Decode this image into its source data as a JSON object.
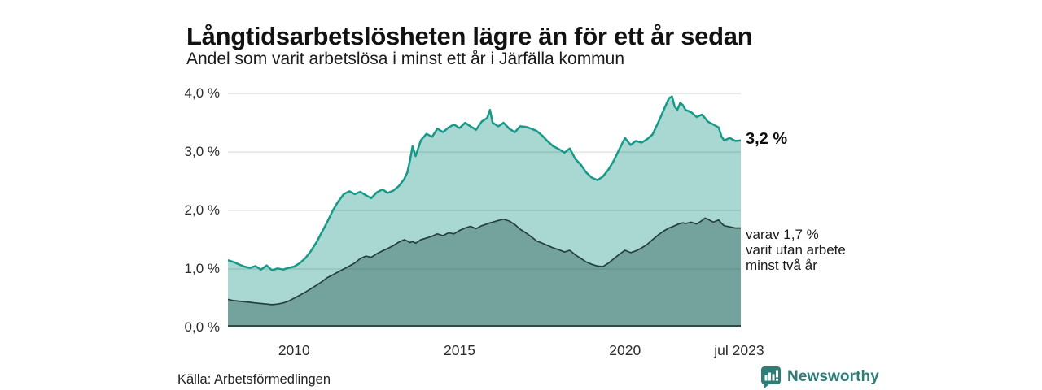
{
  "header": {
    "title": "Långtidsarbetslösheten lägre än för ett år sedan",
    "subtitle": "Andel som varit arbetslösa i minst ett år i Järfälla kommun"
  },
  "chart_data": {
    "type": "area",
    "title": "Långtidsarbetslösheten lägre än för ett år sedan",
    "subtitle": "Andel som varit arbetslösa i minst ett år i Järfälla kommun",
    "unit": "%",
    "x_range": [
      2008.0,
      2023.5
    ],
    "y_range": [
      0,
      4.14
    ],
    "grid": true,
    "x_ticks": [
      {
        "t": 2010,
        "label": "2010"
      },
      {
        "t": 2015,
        "label": "2015"
      },
      {
        "t": 2020,
        "label": "2020"
      },
      {
        "t": 2023.45,
        "label": "jul 2023"
      }
    ],
    "y_ticks": [
      {
        "v": 4,
        "label": "4,0 %"
      },
      {
        "v": 3,
        "label": "3,0 %"
      },
      {
        "v": 2,
        "label": "2,0 %"
      },
      {
        "v": 1,
        "label": "1,0 %"
      },
      {
        "v": 0,
        "label": "0,0 %"
      }
    ],
    "series": [
      {
        "name": "Andel som varit arbetslösa minst ett år",
        "line": "#17998a",
        "fill": "#a9d7d1",
        "last_value": 3.2
      },
      {
        "name": "varav utan arbete minst två år",
        "line": "#24403d",
        "fill": "#74a29d",
        "last_value": 1.7
      }
    ],
    "points": [
      [
        2008.0,
        1.15,
        0.48
      ],
      [
        2008.17,
        1.12,
        0.46
      ],
      [
        2008.33,
        1.08,
        0.45
      ],
      [
        2008.5,
        1.04,
        0.44
      ],
      [
        2008.67,
        1.02,
        0.43
      ],
      [
        2008.83,
        1.05,
        0.42
      ],
      [
        2009.0,
        0.99,
        0.41
      ],
      [
        2009.17,
        1.06,
        0.4
      ],
      [
        2009.33,
        0.98,
        0.39
      ],
      [
        2009.5,
        1.01,
        0.4
      ],
      [
        2009.67,
        0.99,
        0.42
      ],
      [
        2009.83,
        1.02,
        0.45
      ],
      [
        2010.0,
        1.04,
        0.5
      ],
      [
        2010.17,
        1.1,
        0.55
      ],
      [
        2010.33,
        1.18,
        0.6
      ],
      [
        2010.5,
        1.3,
        0.66
      ],
      [
        2010.67,
        1.45,
        0.72
      ],
      [
        2010.83,
        1.62,
        0.78
      ],
      [
        2011.0,
        1.8,
        0.85
      ],
      [
        2011.17,
        2.0,
        0.9
      ],
      [
        2011.33,
        2.15,
        0.95
      ],
      [
        2011.5,
        2.28,
        1.0
      ],
      [
        2011.67,
        2.33,
        1.05
      ],
      [
        2011.83,
        2.28,
        1.1
      ],
      [
        2012.0,
        2.32,
        1.18
      ],
      [
        2012.17,
        2.26,
        1.22
      ],
      [
        2012.33,
        2.21,
        1.2
      ],
      [
        2012.5,
        2.31,
        1.26
      ],
      [
        2012.67,
        2.36,
        1.31
      ],
      [
        2012.83,
        2.3,
        1.35
      ],
      [
        2013.0,
        2.34,
        1.4
      ],
      [
        2013.17,
        2.42,
        1.46
      ],
      [
        2013.33,
        2.54,
        1.5
      ],
      [
        2013.42,
        2.65,
        1.48
      ],
      [
        2013.5,
        2.85,
        1.45
      ],
      [
        2013.58,
        3.1,
        1.47
      ],
      [
        2013.67,
        2.93,
        1.44
      ],
      [
        2013.83,
        3.2,
        1.5
      ],
      [
        2014.0,
        3.31,
        1.53
      ],
      [
        2014.17,
        3.26,
        1.56
      ],
      [
        2014.33,
        3.4,
        1.6
      ],
      [
        2014.5,
        3.34,
        1.57
      ],
      [
        2014.67,
        3.42,
        1.62
      ],
      [
        2014.83,
        3.47,
        1.6
      ],
      [
        2015.0,
        3.41,
        1.66
      ],
      [
        2015.17,
        3.5,
        1.7
      ],
      [
        2015.33,
        3.44,
        1.73
      ],
      [
        2015.5,
        3.38,
        1.69
      ],
      [
        2015.67,
        3.52,
        1.74
      ],
      [
        2015.83,
        3.58,
        1.77
      ],
      [
        2015.92,
        3.72,
        1.79
      ],
      [
        2016.0,
        3.5,
        1.8
      ],
      [
        2016.17,
        3.44,
        1.83
      ],
      [
        2016.33,
        3.5,
        1.85
      ],
      [
        2016.5,
        3.4,
        1.82
      ],
      [
        2016.67,
        3.34,
        1.76
      ],
      [
        2016.83,
        3.44,
        1.68
      ],
      [
        2017.0,
        3.43,
        1.62
      ],
      [
        2017.17,
        3.4,
        1.55
      ],
      [
        2017.33,
        3.36,
        1.48
      ],
      [
        2017.5,
        3.28,
        1.44
      ],
      [
        2017.67,
        3.18,
        1.4
      ],
      [
        2017.83,
        3.1,
        1.36
      ],
      [
        2018.0,
        3.05,
        1.33
      ],
      [
        2018.17,
        2.99,
        1.29
      ],
      [
        2018.33,
        3.06,
        1.32
      ],
      [
        2018.5,
        2.88,
        1.24
      ],
      [
        2018.67,
        2.78,
        1.18
      ],
      [
        2018.83,
        2.65,
        1.12
      ],
      [
        2019.0,
        2.56,
        1.08
      ],
      [
        2019.17,
        2.52,
        1.05
      ],
      [
        2019.33,
        2.58,
        1.04
      ],
      [
        2019.5,
        2.7,
        1.1
      ],
      [
        2019.67,
        2.86,
        1.18
      ],
      [
        2019.83,
        3.05,
        1.25
      ],
      [
        2020.0,
        3.24,
        1.32
      ],
      [
        2020.17,
        3.12,
        1.28
      ],
      [
        2020.33,
        3.19,
        1.31
      ],
      [
        2020.5,
        3.16,
        1.36
      ],
      [
        2020.67,
        3.22,
        1.42
      ],
      [
        2020.83,
        3.3,
        1.5
      ],
      [
        2021.0,
        3.5,
        1.58
      ],
      [
        2021.17,
        3.72,
        1.65
      ],
      [
        2021.33,
        3.92,
        1.7
      ],
      [
        2021.42,
        3.95,
        1.72
      ],
      [
        2021.5,
        3.78,
        1.74
      ],
      [
        2021.58,
        3.72,
        1.76
      ],
      [
        2021.67,
        3.84,
        1.78
      ],
      [
        2021.75,
        3.8,
        1.79
      ],
      [
        2021.83,
        3.72,
        1.78
      ],
      [
        2021.92,
        3.7,
        1.79
      ],
      [
        2022.0,
        3.68,
        1.8
      ],
      [
        2022.17,
        3.6,
        1.77
      ],
      [
        2022.33,
        3.64,
        1.83
      ],
      [
        2022.42,
        3.58,
        1.87
      ],
      [
        2022.5,
        3.52,
        1.85
      ],
      [
        2022.67,
        3.47,
        1.8
      ],
      [
        2022.83,
        3.42,
        1.84
      ],
      [
        2022.92,
        3.26,
        1.78
      ],
      [
        2023.0,
        3.2,
        1.74
      ],
      [
        2023.17,
        3.24,
        1.72
      ],
      [
        2023.33,
        3.19,
        1.7
      ],
      [
        2023.5,
        3.2,
        1.7
      ]
    ],
    "annotations": {
      "total": "3,2 %",
      "sub_lines": [
        "varav 1,7 %",
        "varit utan arbete",
        "minst två år"
      ]
    },
    "colors": {
      "gridline": "rgba(40,60,55,0.16)",
      "baseline": "#2f4a47",
      "brand_teal": "#2e7d76"
    },
    "legend_position": "none"
  },
  "footer": {
    "source": "Källa: Arbetsförmedlingen",
    "brand": "Newsworthy"
  }
}
